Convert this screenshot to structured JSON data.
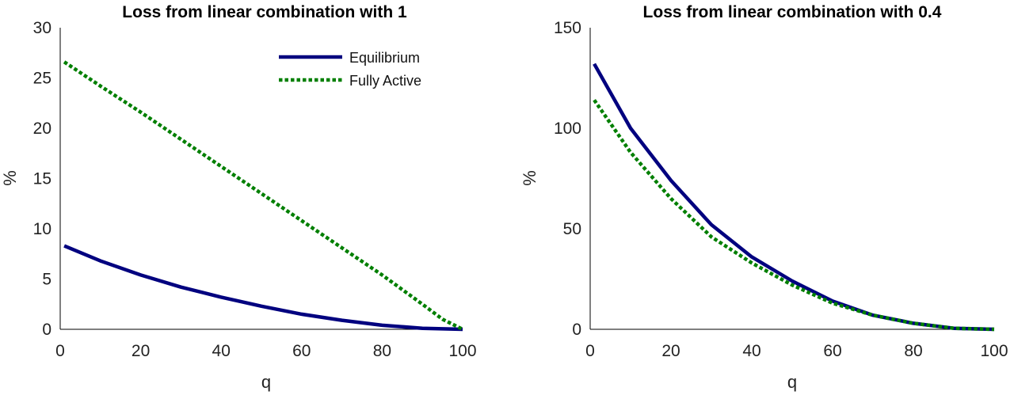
{
  "chart_data": [
    {
      "type": "line",
      "title": "Loss from linear combination with 1",
      "xlabel": "q",
      "ylabel": "%",
      "xlim": [
        0,
        100
      ],
      "ylim": [
        0,
        30
      ],
      "xticks": [
        0,
        20,
        40,
        60,
        80,
        100
      ],
      "yticks": [
        0,
        5,
        10,
        15,
        20,
        25,
        30
      ],
      "grid": false,
      "legend": "top-right",
      "series": [
        {
          "name": "Equilibrium",
          "style": "solid",
          "color": "#00007f",
          "x": [
            1,
            10,
            20,
            30,
            40,
            50,
            60,
            70,
            80,
            90,
            100
          ],
          "y": [
            8.3,
            6.8,
            5.4,
            4.2,
            3.2,
            2.3,
            1.5,
            0.9,
            0.4,
            0.1,
            0
          ]
        },
        {
          "name": "Fully Active",
          "style": "dotted",
          "color": "#007f00",
          "x": [
            1,
            10,
            20,
            30,
            40,
            50,
            60,
            70,
            80,
            90,
            95,
            100
          ],
          "y": [
            26.6,
            24.2,
            21.6,
            18.9,
            16.2,
            13.5,
            10.8,
            8.1,
            5.4,
            2.5,
            1.0,
            0
          ]
        }
      ]
    },
    {
      "type": "line",
      "title": "Loss from linear combination with 0.4",
      "xlabel": "q",
      "ylabel": "%",
      "xlim": [
        0,
        100
      ],
      "ylim": [
        0,
        150
      ],
      "xticks": [
        0,
        20,
        40,
        60,
        80,
        100
      ],
      "yticks": [
        0,
        50,
        100,
        150
      ],
      "grid": false,
      "series": [
        {
          "name": "Equilibrium",
          "style": "solid",
          "color": "#00007f",
          "x": [
            1,
            10,
            20,
            30,
            40,
            50,
            60,
            70,
            80,
            90,
            100
          ],
          "y": [
            132,
            100,
            74,
            52,
            36,
            24,
            14,
            7,
            3,
            0.5,
            0
          ]
        },
        {
          "name": "Fully Active",
          "style": "dotted",
          "color": "#007f00",
          "x": [
            1,
            10,
            20,
            30,
            40,
            50,
            60,
            70,
            80,
            90,
            100
          ],
          "y": [
            114,
            88,
            65,
            46,
            33,
            22,
            13,
            7,
            3,
            0.5,
            0
          ]
        }
      ]
    }
  ]
}
